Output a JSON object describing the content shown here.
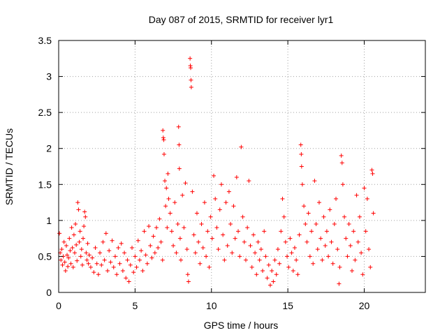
{
  "chart_data": {
    "type": "scatter",
    "title": "Day 087 of 2015, SRMTID for receiver lyr1",
    "xlabel": "GPS time / hours",
    "ylabel": "SRMTID / TECUs",
    "xlim": [
      0,
      24
    ],
    "ylim": [
      0,
      3.5
    ],
    "x_ticks": [
      0,
      5,
      10,
      15,
      20
    ],
    "x_tick_labels": [
      "0",
      "5",
      "10",
      "15",
      "20"
    ],
    "y_ticks": [
      0,
      0.5,
      1,
      1.5,
      2,
      2.5,
      3,
      3.5
    ],
    "y_tick_labels": [
      "0",
      "0.5",
      "1",
      "1.5",
      "2",
      "2.5",
      "3",
      "3.5"
    ],
    "grid": true,
    "marker": "+",
    "color": "#ff0000",
    "series": [
      {
        "name": "SRMTID",
        "points": [
          [
            0.05,
            0.82
          ],
          [
            0.1,
            0.55
          ],
          [
            0.15,
            0.45
          ],
          [
            0.2,
            0.6
          ],
          [
            0.25,
            0.38
          ],
          [
            0.3,
            0.5
          ],
          [
            0.35,
            0.7
          ],
          [
            0.4,
            0.42
          ],
          [
            0.45,
            0.3
          ],
          [
            0.5,
            0.65
          ],
          [
            0.55,
            0.52
          ],
          [
            0.6,
            0.36
          ],
          [
            0.65,
            0.48
          ],
          [
            0.7,
            0.75
          ],
          [
            0.75,
            0.58
          ],
          [
            0.8,
            0.4
          ],
          [
            0.85,
            0.9
          ],
          [
            0.9,
            0.62
          ],
          [
            0.95,
            0.35
          ],
          [
            1.0,
            0.8
          ],
          [
            1.05,
            0.55
          ],
          [
            1.1,
            0.95
          ],
          [
            1.15,
            0.66
          ],
          [
            1.2,
            0.44
          ],
          [
            1.25,
            1.25
          ],
          [
            1.3,
            1.15
          ],
          [
            1.35,
            0.7
          ],
          [
            1.4,
            0.85
          ],
          [
            1.45,
            0.5
          ],
          [
            1.5,
            0.6
          ],
          [
            1.55,
            0.38
          ],
          [
            1.6,
            0.75
          ],
          [
            1.65,
            0.92
          ],
          [
            1.7,
            1.12
          ],
          [
            1.75,
            1.05
          ],
          [
            1.8,
            0.55
          ],
          [
            1.85,
            0.45
          ],
          [
            1.9,
            0.68
          ],
          [
            1.95,
            0.4
          ],
          [
            2.0,
            0.52
          ],
          [
            2.1,
            0.35
          ],
          [
            2.2,
            0.48
          ],
          [
            2.3,
            0.28
          ],
          [
            2.4,
            0.62
          ],
          [
            2.5,
            0.4
          ],
          [
            2.6,
            0.25
          ],
          [
            2.7,
            0.55
          ],
          [
            2.8,
            0.38
          ],
          [
            2.9,
            0.7
          ],
          [
            3.0,
            0.45
          ],
          [
            3.1,
            0.82
          ],
          [
            3.2,
            0.3
          ],
          [
            3.3,
            0.58
          ],
          [
            3.4,
            0.42
          ],
          [
            3.5,
            0.72
          ],
          [
            3.6,
            0.35
          ],
          [
            3.7,
            0.5
          ],
          [
            3.8,
            0.25
          ],
          [
            3.9,
            0.62
          ],
          [
            4.0,
            0.4
          ],
          [
            4.1,
            0.68
          ],
          [
            4.2,
            0.3
          ],
          [
            4.3,
            0.55
          ],
          [
            4.4,
            0.2
          ],
          [
            4.5,
            0.45
          ],
          [
            4.6,
            0.15
          ],
          [
            4.7,
            0.38
          ],
          [
            4.8,
            0.62
          ],
          [
            4.9,
            0.28
          ],
          [
            5.0,
            0.5
          ],
          [
            5.1,
            0.35
          ],
          [
            5.2,
            0.72
          ],
          [
            5.3,
            0.45
          ],
          [
            5.4,
            0.58
          ],
          [
            5.5,
            0.3
          ],
          [
            5.6,
            0.85
          ],
          [
            5.7,
            0.52
          ],
          [
            5.8,
            0.4
          ],
          [
            5.9,
            0.92
          ],
          [
            6.0,
            0.65
          ],
          [
            6.1,
            0.48
          ],
          [
            6.2,
            0.78
          ],
          [
            6.3,
            0.55
          ],
          [
            6.4,
            0.9
          ],
          [
            6.5,
            0.62
          ],
          [
            6.6,
            1.02
          ],
          [
            6.7,
            0.7
          ],
          [
            6.8,
            0.45
          ],
          [
            6.82,
            2.25
          ],
          [
            6.85,
            2.15
          ],
          [
            6.88,
            2.12
          ],
          [
            6.9,
            1.92
          ],
          [
            6.95,
            1.55
          ],
          [
            7.0,
            1.2
          ],
          [
            7.05,
            1.45
          ],
          [
            7.1,
            0.9
          ],
          [
            7.15,
            1.65
          ],
          [
            7.2,
            1.3
          ],
          [
            7.3,
            1.1
          ],
          [
            7.4,
            0.85
          ],
          [
            7.5,
            0.65
          ],
          [
            7.6,
            1.25
          ],
          [
            7.7,
            0.55
          ],
          [
            7.8,
            0.95
          ],
          [
            7.85,
            2.3
          ],
          [
            7.88,
            2.05
          ],
          [
            7.9,
            1.72
          ],
          [
            7.95,
            0.75
          ],
          [
            8.0,
            0.45
          ],
          [
            8.1,
            1.35
          ],
          [
            8.2,
            0.9
          ],
          [
            8.3,
            1.52
          ],
          [
            8.4,
            0.6
          ],
          [
            8.45,
            0.25
          ],
          [
            8.5,
            0.15
          ],
          [
            8.6,
            3.25
          ],
          [
            8.62,
            3.15
          ],
          [
            8.64,
            3.12
          ],
          [
            8.66,
            2.95
          ],
          [
            8.68,
            2.85
          ],
          [
            8.75,
            1.4
          ],
          [
            8.85,
            0.8
          ],
          [
            8.95,
            0.55
          ],
          [
            9.05,
            1.1
          ],
          [
            9.15,
            0.7
          ],
          [
            9.25,
            0.4
          ],
          [
            9.35,
            0.95
          ],
          [
            9.45,
            0.62
          ],
          [
            9.55,
            1.25
          ],
          [
            9.65,
            0.5
          ],
          [
            9.75,
            0.85
          ],
          [
            9.85,
            0.35
          ],
          [
            9.95,
            1.05
          ],
          [
            10.05,
            0.75
          ],
          [
            10.15,
            1.62
          ],
          [
            10.25,
            1.3
          ],
          [
            10.35,
            0.9
          ],
          [
            10.45,
            0.6
          ],
          [
            10.55,
            1.15
          ],
          [
            10.65,
            1.5
          ],
          [
            10.75,
            0.8
          ],
          [
            10.85,
            0.45
          ],
          [
            10.95,
            1.25
          ],
          [
            11.05,
            0.65
          ],
          [
            11.15,
            1.4
          ],
          [
            11.25,
            0.95
          ],
          [
            11.35,
            0.55
          ],
          [
            11.45,
            1.2
          ],
          [
            11.55,
            0.75
          ],
          [
            11.65,
            1.6
          ],
          [
            11.75,
            0.85
          ],
          [
            11.85,
            0.5
          ],
          [
            11.95,
            2.02
          ],
          [
            12.05,
            1.05
          ],
          [
            12.15,
            0.7
          ],
          [
            12.25,
            0.45
          ],
          [
            12.35,
            0.9
          ],
          [
            12.45,
            1.55
          ],
          [
            12.55,
            0.65
          ],
          [
            12.65,
            0.35
          ],
          [
            12.75,
            0.8
          ],
          [
            12.85,
            0.55
          ],
          [
            12.95,
            0.25
          ],
          [
            13.05,
            0.7
          ],
          [
            13.15,
            0.45
          ],
          [
            13.25,
            0.6
          ],
          [
            13.35,
            0.3
          ],
          [
            13.45,
            0.85
          ],
          [
            13.55,
            0.5
          ],
          [
            13.65,
            0.2
          ],
          [
            13.75,
            0.38
          ],
          [
            13.85,
            0.1
          ],
          [
            13.95,
            0.3
          ],
          [
            14.05,
            0.15
          ],
          [
            14.15,
            0.45
          ],
          [
            14.25,
            0.25
          ],
          [
            14.35,
            0.6
          ],
          [
            14.45,
            0.4
          ],
          [
            14.55,
            0.85
          ],
          [
            14.65,
            1.3
          ],
          [
            14.75,
            1.05
          ],
          [
            14.85,
            0.7
          ],
          [
            14.95,
            0.5
          ],
          [
            15.05,
            0.35
          ],
          [
            15.15,
            0.75
          ],
          [
            15.25,
            0.55
          ],
          [
            15.35,
            0.3
          ],
          [
            15.45,
            0.62
          ],
          [
            15.55,
            0.45
          ],
          [
            15.65,
            0.25
          ],
          [
            15.75,
            0.8
          ],
          [
            15.85,
            2.05
          ],
          [
            15.88,
            1.92
          ],
          [
            15.9,
            1.75
          ],
          [
            15.95,
            1.5
          ],
          [
            16.05,
            1.2
          ],
          [
            16.15,
            0.95
          ],
          [
            16.25,
            0.7
          ],
          [
            16.35,
            1.1
          ],
          [
            16.45,
            0.5
          ],
          [
            16.55,
            0.85
          ],
          [
            16.65,
            0.4
          ],
          [
            16.75,
            1.55
          ],
          [
            16.85,
            0.95
          ],
          [
            16.95,
            0.6
          ],
          [
            17.05,
            1.25
          ],
          [
            17.15,
            0.75
          ],
          [
            17.25,
            0.45
          ],
          [
            17.35,
            1.05
          ],
          [
            17.45,
            0.65
          ],
          [
            17.55,
            0.85
          ],
          [
            17.65,
            0.5
          ],
          [
            17.75,
            1.15
          ],
          [
            17.85,
            0.7
          ],
          [
            17.95,
            0.4
          ],
          [
            18.05,
            0.95
          ],
          [
            18.15,
            1.3
          ],
          [
            18.25,
            0.6
          ],
          [
            18.35,
            0.12
          ],
          [
            18.4,
            0.35
          ],
          [
            18.5,
            1.9
          ],
          [
            18.55,
            1.8
          ],
          [
            18.6,
            1.5
          ],
          [
            18.7,
            1.05
          ],
          [
            18.8,
            0.75
          ],
          [
            18.9,
            0.5
          ],
          [
            19.0,
            0.95
          ],
          [
            19.1,
            0.65
          ],
          [
            19.2,
            0.3
          ],
          [
            19.3,
            0.85
          ],
          [
            19.4,
            0.45
          ],
          [
            19.5,
            1.35
          ],
          [
            19.6,
            0.7
          ],
          [
            19.7,
            1.05
          ],
          [
            19.8,
            0.55
          ],
          [
            19.9,
            0.25
          ],
          [
            20.0,
            1.45
          ],
          [
            20.1,
            0.85
          ],
          [
            20.2,
            1.3
          ],
          [
            20.3,
            0.6
          ],
          [
            20.4,
            0.35
          ],
          [
            20.5,
            1.7
          ],
          [
            20.55,
            1.65
          ],
          [
            20.6,
            1.1
          ]
        ]
      }
    ]
  }
}
